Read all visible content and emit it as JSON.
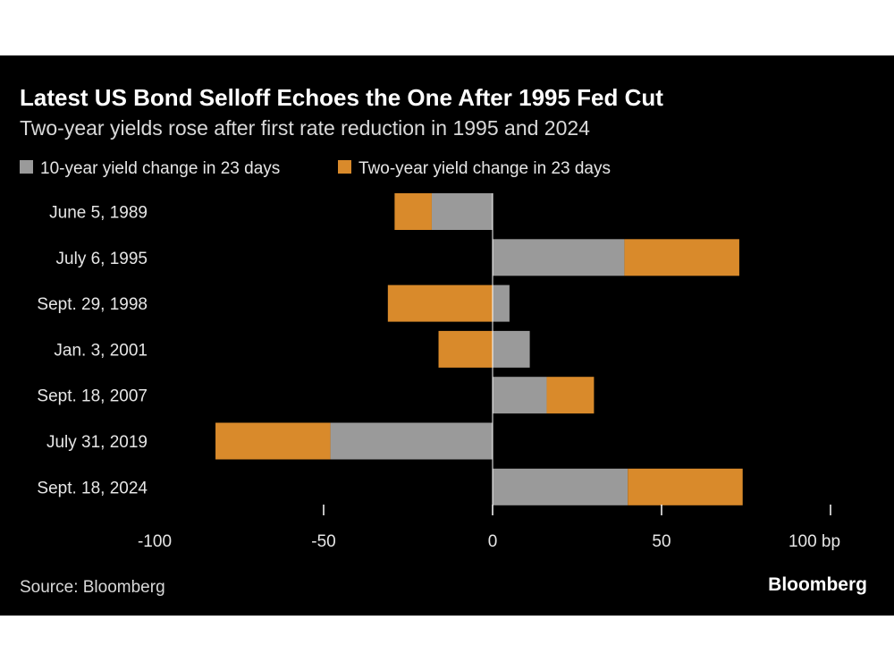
{
  "chart_data": {
    "type": "bar",
    "orientation": "horizontal",
    "stacked": true,
    "title": "Latest US Bond Selloff Echoes the One After 1995 Fed Cut",
    "subtitle": "Two-year yields rose after first rate reduction in 1995 and 2024",
    "categories": [
      "June 5, 1989",
      "July 6, 1995",
      "Sept. 29, 1998",
      "Jan. 3, 2001",
      "Sept. 18, 2007",
      "July 31, 2019",
      "Sept. 18, 2024"
    ],
    "series": [
      {
        "name": "10-year yield change in 23 days",
        "color": "#9a9a9a",
        "values": [
          -18,
          39,
          5,
          11,
          16,
          -48,
          40
        ]
      },
      {
        "name": "Two-year yield change in 23 days",
        "color": "#d98a2b",
        "values": [
          -11,
          34,
          -31,
          -16,
          14,
          -34,
          34
        ]
      }
    ],
    "xlim": [
      -100,
      100
    ],
    "xticks": [
      -100,
      -50,
      0,
      50,
      100
    ],
    "xtick_labels": [
      "-100",
      "-50",
      "0",
      "50",
      "100 bp"
    ],
    "legend_position": "top-left",
    "grid": false
  },
  "source": "Source: Bloomberg",
  "brand": "Bloomberg"
}
